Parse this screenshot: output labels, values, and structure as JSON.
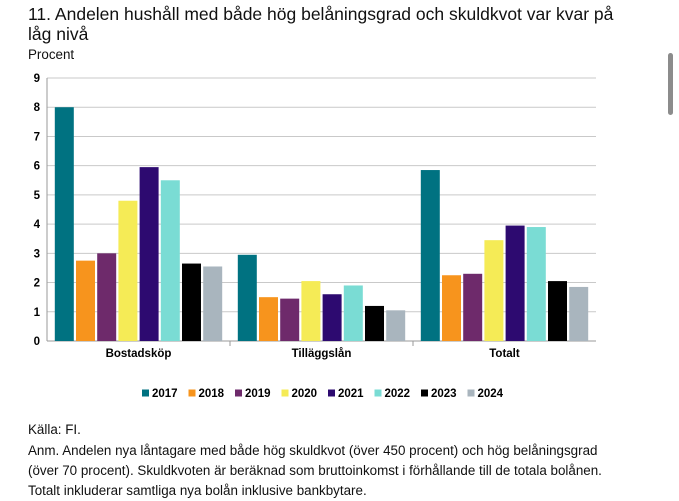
{
  "chart_data": {
    "type": "bar",
    "title": "11. Andelen hushåll med både hög belåningsgrad och skuldkvot var kvar på låg nivå",
    "ylabel": "Procent",
    "xlabel": "",
    "ylim": [
      0,
      9
    ],
    "yticks": [
      0,
      1,
      2,
      3,
      4,
      5,
      6,
      7,
      8,
      9
    ],
    "grid": true,
    "legend_position": "bottom",
    "categories": [
      "Bostadsköp",
      "Tilläggslån",
      "Totalt"
    ],
    "series": [
      {
        "name": "2017",
        "color": "#007281",
        "values": [
          8.0,
          2.95,
          5.85
        ]
      },
      {
        "name": "2018",
        "color": "#F7941D",
        "values": [
          2.75,
          1.5,
          2.25
        ]
      },
      {
        "name": "2019",
        "color": "#6E2A6B",
        "values": [
          3.0,
          1.45,
          2.3
        ]
      },
      {
        "name": "2020",
        "color": "#F5EB56",
        "values": [
          4.8,
          2.05,
          3.45
        ]
      },
      {
        "name": "2021",
        "color": "#2D0A70",
        "values": [
          5.95,
          1.6,
          3.95
        ]
      },
      {
        "name": "2022",
        "color": "#7ADCD4",
        "values": [
          5.5,
          1.9,
          3.9
        ]
      },
      {
        "name": "2023",
        "color": "#000000",
        "values": [
          2.65,
          1.2,
          2.05
        ]
      },
      {
        "name": "2024",
        "color": "#A9B5BE",
        "values": [
          2.55,
          1.05,
          1.85
        ]
      }
    ]
  },
  "notes": {
    "source": "Källa: FI.",
    "anm": "Anm. Andelen nya låntagare med både hög skuldkvot (över 450 procent) och hög belåningsgrad (över 70 procent). Skuldkvoten är beräknad som bruttoinkomst i förhållande till de totala bolånen. Totalt inkluderar samtliga nya bolån inklusive bankbytare."
  }
}
